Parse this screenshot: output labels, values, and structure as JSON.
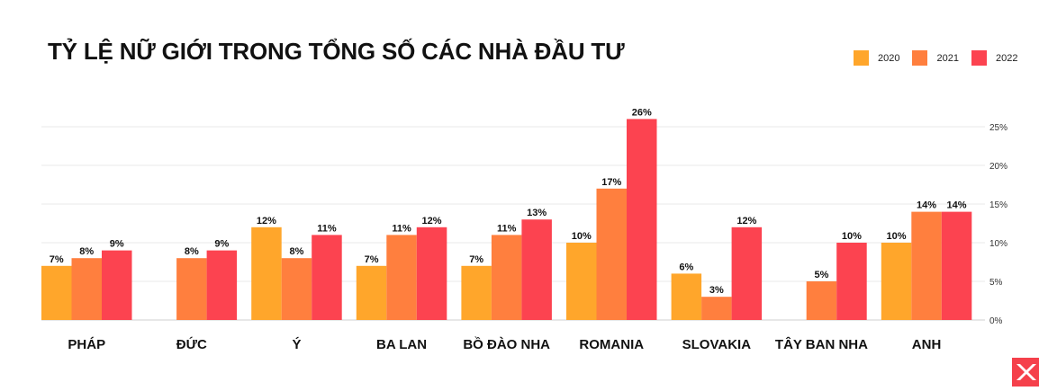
{
  "chart_data": {
    "type": "bar",
    "title": "TỶ LỆ NỮ GIỚI TRONG TỔNG SỐ CÁC NHÀ ĐẦU TƯ",
    "categories": [
      "PHÁP",
      "ĐỨC",
      "Ý",
      "BA LAN",
      "BỒ ĐÀO NHA",
      "ROMANIA",
      "SLOVAKIA",
      "TÂY BAN NHA",
      "ANH"
    ],
    "series": [
      {
        "name": "2020",
        "color": "#ffa62b",
        "values": [
          7,
          null,
          12,
          7,
          7,
          10,
          6,
          null,
          10
        ]
      },
      {
        "name": "2021",
        "color": "#ff7f3e",
        "values": [
          8,
          8,
          8,
          11,
          11,
          17,
          3,
          5,
          14
        ]
      },
      {
        "name": "2022",
        "color": "#fc4350",
        "values": [
          9,
          9,
          11,
          12,
          13,
          26,
          12,
          10,
          14
        ]
      }
    ],
    "ylim": [
      0,
      25
    ],
    "yticks": [
      0,
      5,
      10,
      15,
      20,
      25
    ],
    "ytick_format": "%",
    "legend": "top-right",
    "grid": true
  },
  "logo": "xtb-x-logo"
}
